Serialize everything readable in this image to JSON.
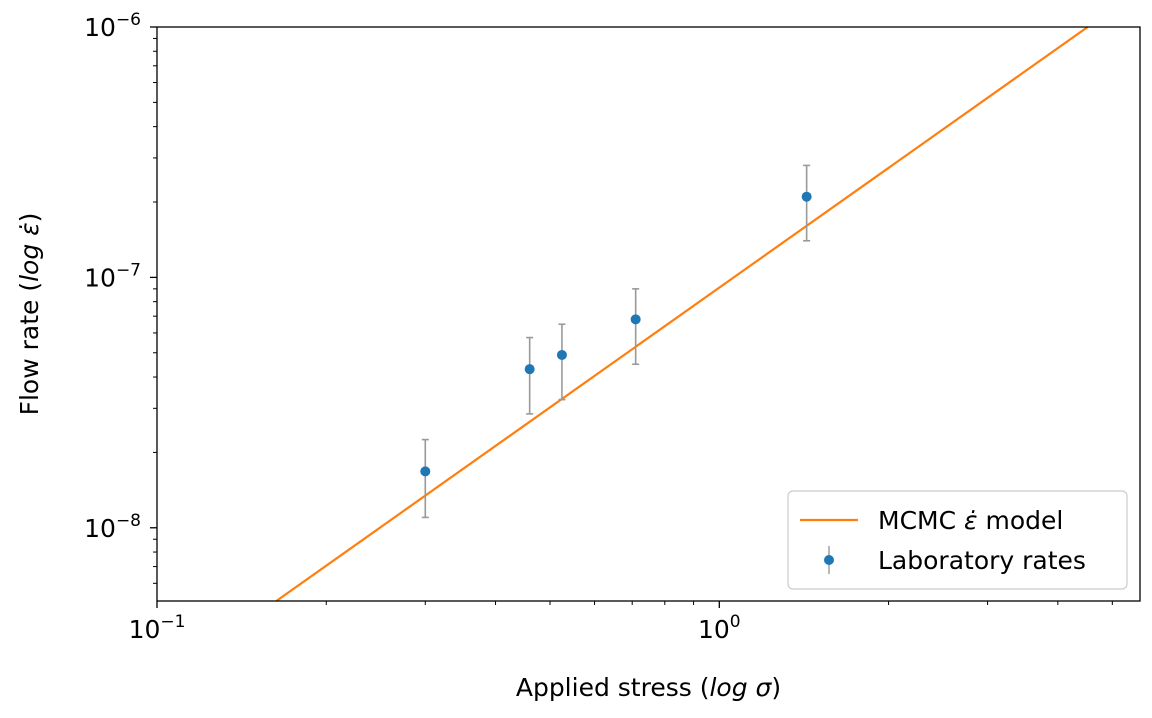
{
  "chart_data": {
    "type": "scatter",
    "title": "",
    "x_scale": "log",
    "y_scale": "log",
    "xlim": [
      0.1,
      5.6
    ],
    "ylim": [
      5.1e-09,
      1e-06
    ],
    "xlabel": {
      "pre": "Applied stress (",
      "var": "log σ",
      "post": ")"
    },
    "ylabel": {
      "pre": "Flow rate (",
      "var": "log ε̇",
      "post": ")"
    },
    "x_ticks": [
      {
        "value": 0.1,
        "base": "10",
        "exp": "−1"
      },
      {
        "value": 1,
        "base": "10",
        "exp": "0"
      }
    ],
    "y_ticks": [
      {
        "value": 1e-08,
        "base": "10",
        "exp": "−8"
      },
      {
        "value": 1e-07,
        "base": "10",
        "exp": "−7"
      },
      {
        "value": 1e-06,
        "base": "10",
        "exp": "−6"
      }
    ],
    "series": [
      {
        "name": "MCMC ε̇ model",
        "kind": "line",
        "color": "#ff7f0e",
        "x": [
          0.163,
          4.52
        ],
        "y": [
          5.1e-09,
          1e-06
        ]
      },
      {
        "name": "Laboratory rates",
        "kind": "errorbar",
        "color": "#1f77b4",
        "errorbar_color": "#999999",
        "points": [
          {
            "x": 0.3,
            "y": 1.68e-08,
            "y_low": 1.1e-08,
            "y_high": 2.25e-08
          },
          {
            "x": 0.46,
            "y": 4.3e-08,
            "y_low": 2.85e-08,
            "y_high": 5.75e-08
          },
          {
            "x": 0.525,
            "y": 4.9e-08,
            "y_low": 3.25e-08,
            "y_high": 6.5e-08
          },
          {
            "x": 0.71,
            "y": 6.8e-08,
            "y_low": 4.5e-08,
            "y_high": 9e-08
          },
          {
            "x": 1.43,
            "y": 2.1e-07,
            "y_low": 1.4e-07,
            "y_high": 2.8e-07
          }
        ]
      }
    ],
    "legend": {
      "placement": "lower-right",
      "entries": [
        {
          "pre": "MCMC ",
          "var": "ε̇",
          "post": " model",
          "series": 0
        },
        {
          "label": "Laboratory rates",
          "series": 1
        }
      ]
    },
    "grid": false
  }
}
